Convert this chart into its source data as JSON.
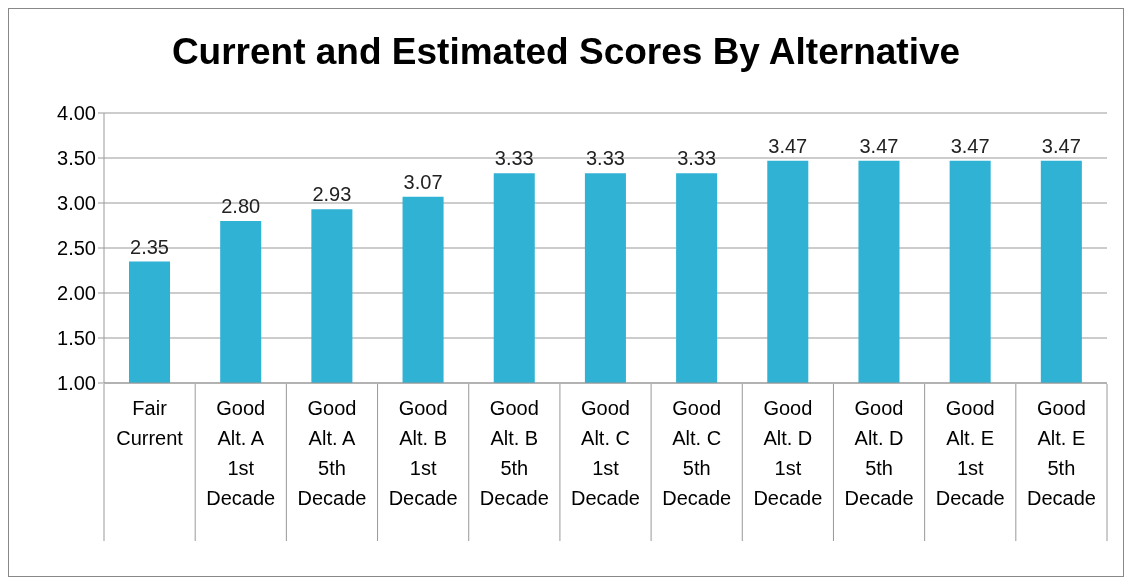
{
  "chart_data": {
    "type": "bar",
    "title": "Current and Estimated Scores By Alternative",
    "categories": [
      "Fair\nCurrent",
      "Good\nAlt. A\n1st\nDecade",
      "Good\nAlt. A\n5th\nDecade",
      "Good\nAlt. B\n1st\nDecade",
      "Good\nAlt. B\n5th\nDecade",
      "Good\nAlt. C\n1st\nDecade",
      "Good\nAlt. C\n5th\nDecade",
      "Good\nAlt. D\n1st\nDecade",
      "Good\nAlt. D\n5th\nDecade",
      "Good\nAlt. E\n1st\nDecade",
      "Good\nAlt. E\n5th\nDecade"
    ],
    "values": [
      2.35,
      2.8,
      2.93,
      3.07,
      3.33,
      3.33,
      3.33,
      3.47,
      3.47,
      3.47,
      3.47
    ],
    "value_labels": [
      "2.35",
      "2.80",
      "2.93",
      "3.07",
      "3.33",
      "3.33",
      "3.33",
      "3.47",
      "3.47",
      "3.47",
      "3.47"
    ],
    "color": "#2fb2d4",
    "ylim": [
      1,
      4
    ],
    "yticks": [
      {
        "value": 1,
        "label": "1.00"
      },
      {
        "value": 1.5,
        "label": "1.50"
      },
      {
        "value": 2,
        "label": "2.00"
      },
      {
        "value": 2.5,
        "label": "2.50"
      },
      {
        "value": 3,
        "label": "3.00"
      },
      {
        "value": 3.5,
        "label": "3.50"
      },
      {
        "value": 4,
        "label": "4.00"
      }
    ],
    "grid": "y"
  }
}
